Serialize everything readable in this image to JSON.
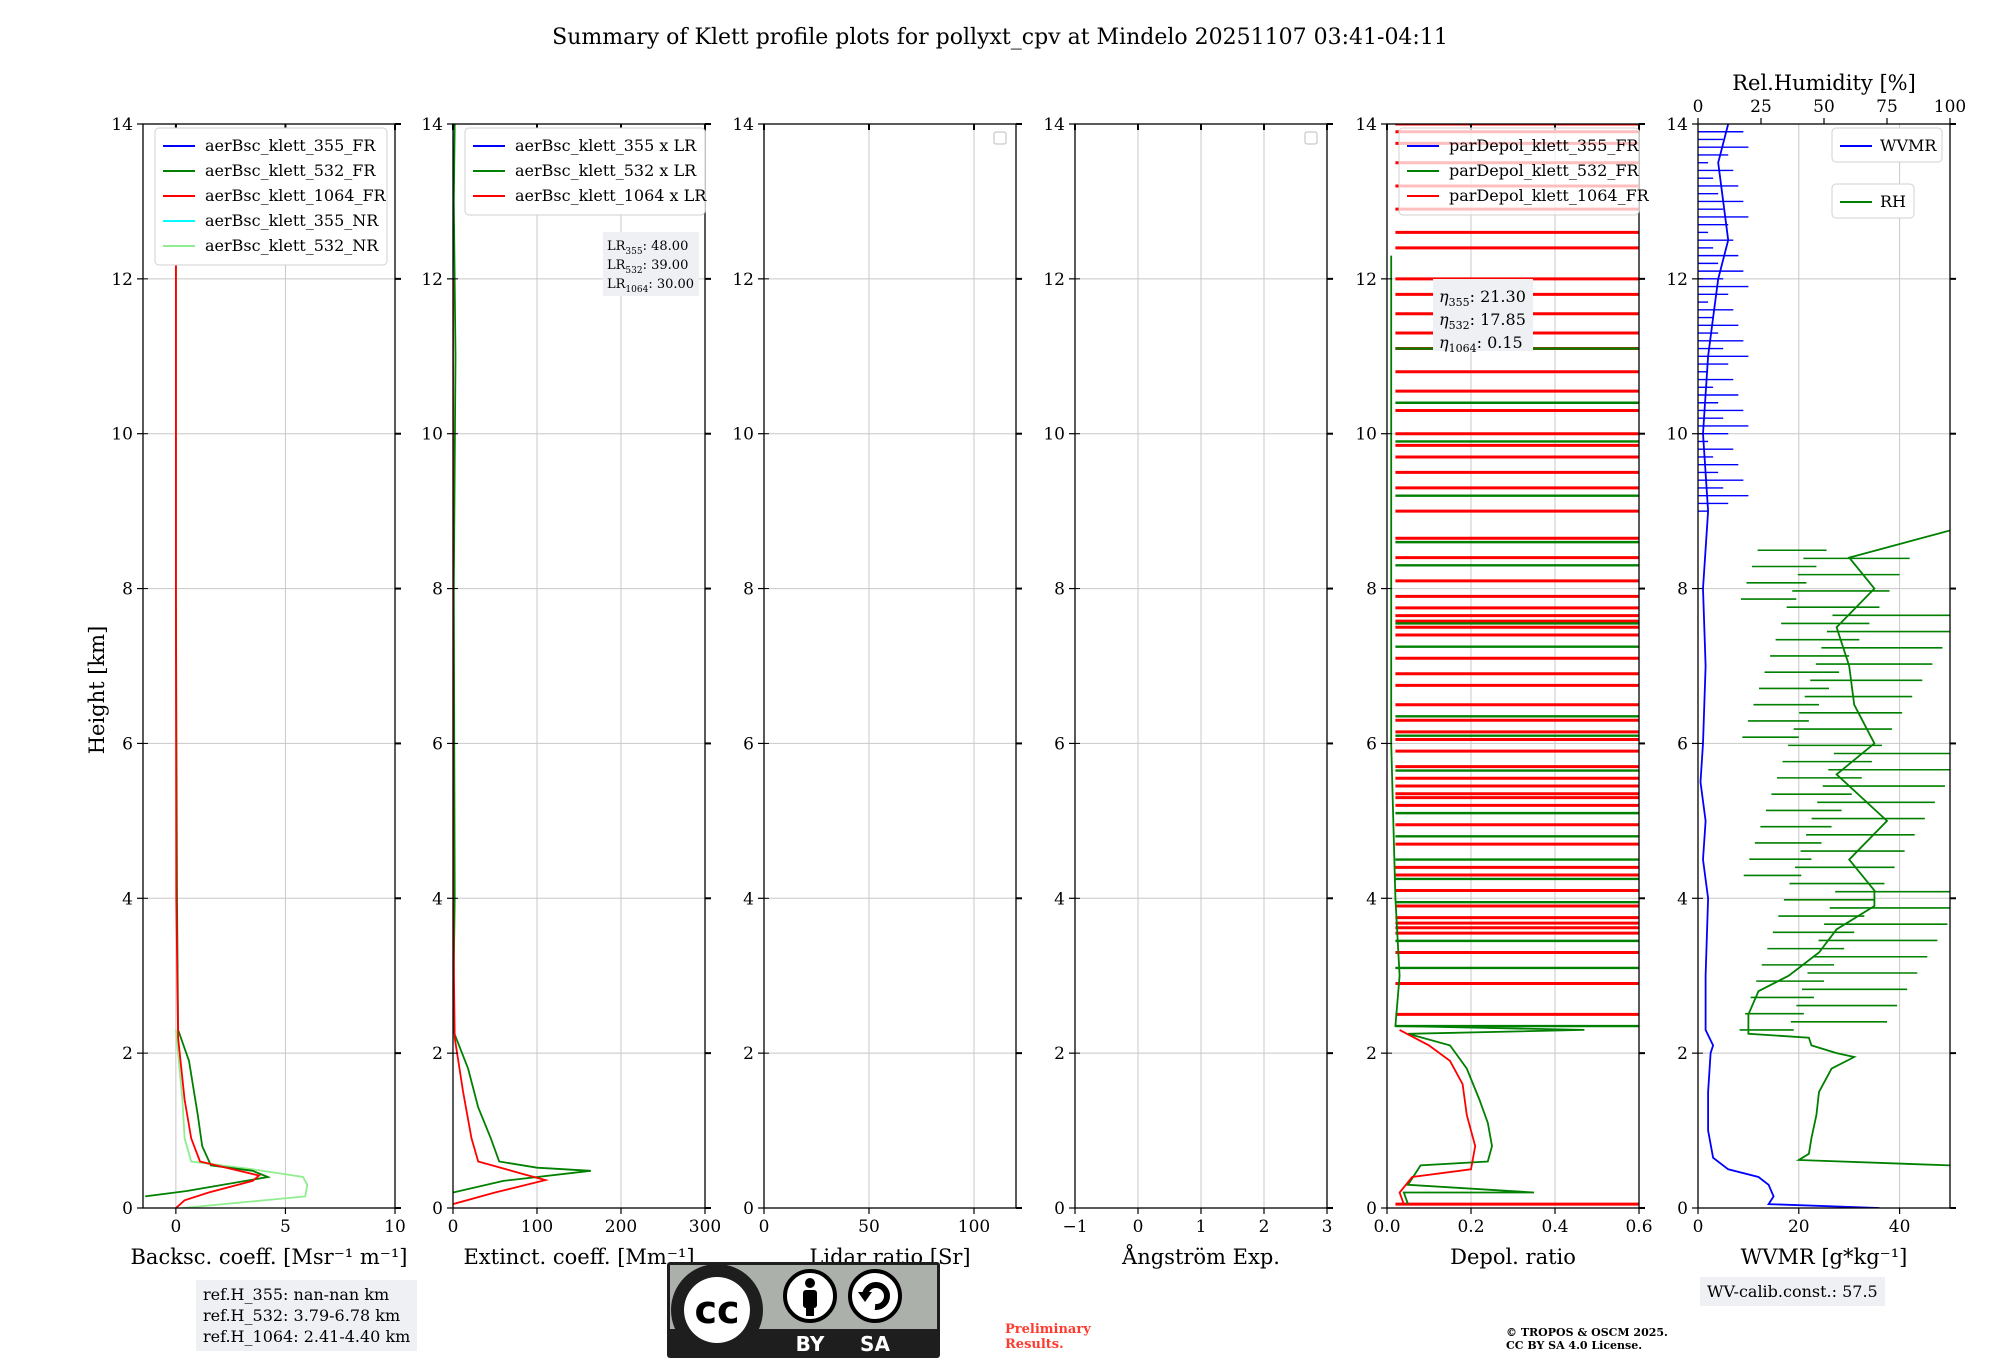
{
  "title": "Summary of Klett profile plots for pollyxt_cpv at Mindelo 20251107 03:41-04:11",
  "y_axis_label": "Height [km]",
  "colors": {
    "blue": "#0000ff",
    "green": "#008000",
    "red": "#ff0000",
    "cyan": "#00ffff",
    "lightgreen": "#90ee90",
    "grid": "#c8c8c8",
    "box_bg": "#eef0f4"
  },
  "chart_data": [
    {
      "type": "line",
      "name": "backscatter",
      "xlabel": "Backsc. coeff. [Msr⁻¹ m⁻¹]",
      "xlim": [
        -1.5,
        10
      ],
      "xticks": [
        0,
        5,
        10
      ],
      "xtick_labels": [
        "0",
        "5",
        "10"
      ],
      "ylim": [
        0,
        14
      ],
      "yticks": [
        0,
        2,
        4,
        6,
        8,
        10,
        12,
        14
      ],
      "ytick_labels": [
        "0",
        "2",
        "4",
        "6",
        "8",
        "10",
        "12",
        "14"
      ],
      "grid": true,
      "legend_position": "top-left",
      "legend": [
        "aerBsc_klett_355_FR",
        "aerBsc_klett_532_FR",
        "aerBsc_klett_1064_FR",
        "aerBsc_klett_355_NR",
        "aerBsc_klett_532_NR"
      ],
      "series": [
        {
          "name": "aerBsc_klett_532_NR",
          "color": "#90ee90",
          "points": [
            [
              0.3,
              0
            ],
            [
              5.9,
              0.15
            ],
            [
              6.0,
              0.3
            ],
            [
              5.8,
              0.4
            ],
            [
              3.5,
              0.5
            ],
            [
              0.7,
              0.6
            ],
            [
              0.4,
              0.9
            ],
            [
              0.3,
              1.4
            ],
            [
              0.1,
              2.0
            ],
            [
              0.0,
              2.3
            ]
          ]
        },
        {
          "name": "aerBsc_klett_532_FR",
          "color": "#008000",
          "points": [
            [
              -1.4,
              0.15
            ],
            [
              0.5,
              0.22
            ],
            [
              4.2,
              0.4
            ],
            [
              3.5,
              0.48
            ],
            [
              1.6,
              0.55
            ],
            [
              1.2,
              0.8
            ],
            [
              1.0,
              1.2
            ],
            [
              0.6,
              1.9
            ],
            [
              0.1,
              2.3
            ],
            [
              0.05,
              4
            ],
            [
              0.0,
              8
            ],
            [
              0.0,
              12
            ],
            [
              0.0,
              14
            ]
          ]
        },
        {
          "name": "aerBsc_klett_1064_FR",
          "color": "#ff0000",
          "points": [
            [
              0.0,
              0.0
            ],
            [
              0.4,
              0.1
            ],
            [
              1.5,
              0.2
            ],
            [
              3.5,
              0.35
            ],
            [
              3.8,
              0.42
            ],
            [
              1.1,
              0.6
            ],
            [
              0.7,
              0.9
            ],
            [
              0.4,
              1.4
            ],
            [
              0.1,
              2.2
            ],
            [
              0.02,
              4
            ],
            [
              0.0,
              8
            ],
            [
              0.0,
              12
            ],
            [
              0.0,
              14
            ]
          ]
        }
      ]
    },
    {
      "type": "line",
      "name": "extinction",
      "xlabel": "Extinct. coeff. [Mm⁻¹]",
      "xlim": [
        0,
        300
      ],
      "xticks": [
        0,
        100,
        200,
        300
      ],
      "xtick_labels": [
        "0",
        "100",
        "200",
        "300"
      ],
      "ylim": [
        0,
        14
      ],
      "yticks": [
        0,
        2,
        4,
        6,
        8,
        10,
        12,
        14
      ],
      "ytick_labels": [
        "0",
        "2",
        "4",
        "6",
        "8",
        "10",
        "12",
        "14"
      ],
      "grid": true,
      "legend_position": "top-left",
      "legend": [
        "aerBsc_klett_355 x LR",
        "aerBsc_klett_532 x LR",
        "aerBsc_klett_1064 x LR"
      ],
      "annotation": {
        "lines": [
          {
            "base": "LR",
            "sub": "355",
            "value": ": 48.00"
          },
          {
            "base": "LR",
            "sub": "532",
            "value": ": 39.00"
          },
          {
            "base": "LR",
            "sub": "1064",
            "value": ": 30.00"
          }
        ]
      },
      "series": [
        {
          "name": "aerBsc_klett_532 x LR",
          "color": "#008000",
          "points": [
            [
              0,
              0.2
            ],
            [
              60,
              0.35
            ],
            [
              164,
              0.48
            ],
            [
              100,
              0.52
            ],
            [
              55,
              0.6
            ],
            [
              45,
              0.9
            ],
            [
              30,
              1.3
            ],
            [
              18,
              1.8
            ],
            [
              0,
              2.3
            ],
            [
              2,
              4
            ],
            [
              1,
              8
            ],
            [
              3,
              11
            ],
            [
              1,
              13
            ],
            [
              2,
              14
            ]
          ]
        },
        {
          "name": "aerBsc_klett_1064 x LR",
          "color": "#ff0000",
          "points": [
            [
              0,
              0.05
            ],
            [
              50,
              0.2
            ],
            [
              110,
              0.36
            ],
            [
              80,
              0.45
            ],
            [
              30,
              0.6
            ],
            [
              22,
              0.9
            ],
            [
              12,
              1.5
            ],
            [
              2,
              2.2
            ],
            [
              0,
              4
            ],
            [
              0,
              8
            ],
            [
              0,
              12
            ]
          ]
        }
      ]
    },
    {
      "type": "line",
      "name": "lidar-ratio",
      "xlabel": "Lidar ratio [Sr]",
      "xlim": [
        0,
        120
      ],
      "xticks": [
        0,
        50,
        100
      ],
      "xtick_labels": [
        "0",
        "50",
        "100"
      ],
      "ylim": [
        0,
        14
      ],
      "yticks": [
        0,
        2,
        4,
        6,
        8,
        10,
        12,
        14
      ],
      "ytick_labels": [
        "0",
        "2",
        "4",
        "6",
        "8",
        "10",
        "12",
        "14"
      ],
      "grid": true,
      "legend_position": "top-right",
      "legend": [],
      "series": []
    },
    {
      "type": "line",
      "name": "angstrom",
      "xlabel": "Ångström Exp.",
      "xlim": [
        -1,
        3
      ],
      "xticks": [
        -1,
        0,
        1,
        2,
        3
      ],
      "xtick_labels": [
        "−1",
        "0",
        "1",
        "2",
        "3"
      ],
      "ylim": [
        0,
        14
      ],
      "yticks": [
        0,
        2,
        4,
        6,
        8,
        10,
        12,
        14
      ],
      "ytick_labels": [
        "0",
        "2",
        "4",
        "6",
        "8",
        "10",
        "12",
        "14"
      ],
      "grid": true,
      "legend_position": "top-right",
      "legend": [],
      "series": []
    },
    {
      "type": "line",
      "name": "depolarization",
      "xlabel": "Depol. ratio",
      "xlim": [
        0,
        0.6
      ],
      "xticks": [
        0,
        0.2,
        0.4,
        0.6
      ],
      "xtick_labels": [
        "0.0",
        "0.2",
        "0.4",
        "0.6"
      ],
      "ylim": [
        0,
        14
      ],
      "yticks": [
        0,
        2,
        4,
        6,
        8,
        10,
        12,
        14
      ],
      "ytick_labels": [
        "0",
        "2",
        "4",
        "6",
        "8",
        "10",
        "12",
        "14"
      ],
      "grid": true,
      "legend_position": "top-left",
      "legend": [
        "parDepol_klett_355_FR",
        "parDepol_klett_532_FR",
        "parDepol_klett_1064_FR"
      ],
      "annotation": {
        "lines": [
          {
            "base": "η",
            "sub": "355",
            "value": ": 21.30"
          },
          {
            "base": "η",
            "sub": "532",
            "value": ": 17.85"
          },
          {
            "base": "η",
            "sub": "1064",
            "value": ": 0.15"
          }
        ]
      },
      "series": [
        {
          "name": "parDepol_klett_532_FR",
          "color": "#008000",
          "points": [
            [
              0.05,
              0.05
            ],
            [
              0.04,
              0.2
            ],
            [
              0.35,
              0.2
            ],
            [
              0.05,
              0.3
            ],
            [
              0.08,
              0.55
            ],
            [
              0.24,
              0.6
            ],
            [
              0.25,
              0.8
            ],
            [
              0.24,
              1.1
            ],
            [
              0.22,
              1.4
            ],
            [
              0.19,
              1.8
            ],
            [
              0.15,
              2.1
            ],
            [
              0.05,
              2.25
            ],
            [
              0.47,
              2.3
            ],
            [
              0.02,
              2.35
            ],
            [
              0.03,
              3
            ],
            [
              0.02,
              4
            ],
            [
              0.01,
              6
            ],
            [
              0.01,
              10
            ],
            [
              0.01,
              12.3
            ]
          ]
        },
        {
          "name": "parDepol_klett_1064_FR",
          "color": "#ff0000",
          "points": [
            [
              0.04,
              0.05
            ],
            [
              0.03,
              0.2
            ],
            [
              0.06,
              0.4
            ],
            [
              0.2,
              0.5
            ],
            [
              0.21,
              0.8
            ],
            [
              0.19,
              1.2
            ],
            [
              0.18,
              1.6
            ],
            [
              0.15,
              1.9
            ],
            [
              0.1,
              2.1
            ],
            [
              0.03,
              2.3
            ]
          ]
        }
      ],
      "spikes_1064_km": [
        0.05,
        2.5,
        2.9,
        3.3,
        3.55,
        3.62,
        3.68,
        3.75,
        3.9,
        4.1,
        4.3,
        4.4,
        4.7,
        4.95,
        5.2,
        5.3,
        5.35,
        5.45,
        5.55,
        5.7,
        5.9,
        6.05,
        6.15,
        6.3,
        6.5,
        6.75,
        6.9,
        7.1,
        7.4,
        7.5,
        7.58,
        7.65,
        7.75,
        7.9,
        8.1,
        8.4,
        8.65,
        9.0,
        9.3,
        9.5,
        9.7,
        9.85,
        10.0,
        10.3,
        10.55,
        10.8,
        11.1,
        11.3,
        11.55,
        11.8,
        12.0,
        12.4,
        12.6,
        12.9,
        13.2,
        13.5,
        13.75,
        13.9,
        14.0
      ],
      "spikes_532_km": [
        2.35,
        3.1,
        3.45,
        3.95,
        4.25,
        4.5,
        4.8,
        5.1,
        5.65,
        6.1,
        6.35,
        7.25,
        7.55,
        8.3,
        8.6,
        9.2,
        9.9,
        10.4,
        11.1
      ]
    },
    {
      "type": "line",
      "name": "wvmr-rh",
      "xlabel": "WVMR [g*kg⁻¹]",
      "xlim": [
        0,
        50
      ],
      "xticks": [
        0,
        20,
        40
      ],
      "xtick_labels": [
        "0",
        "20",
        "40"
      ],
      "x2label": "Rel.Humidity [%]",
      "x2lim": [
        0,
        100
      ],
      "x2ticks": [
        0,
        25,
        50,
        75,
        100
      ],
      "x2tick_labels": [
        "0",
        "25",
        "50",
        "75",
        "100"
      ],
      "ylim": [
        0,
        14
      ],
      "yticks": [
        0,
        2,
        4,
        6,
        8,
        10,
        12,
        14
      ],
      "ytick_labels": [
        "0",
        "2",
        "4",
        "6",
        "8",
        "10",
        "12",
        "14"
      ],
      "grid": true,
      "legend_position": "top-right",
      "legend": [
        "WVMR",
        "RH"
      ],
      "wvmr": [
        [
          36,
          0.0
        ],
        [
          14,
          0.05
        ],
        [
          15,
          0.15
        ],
        [
          14,
          0.3
        ],
        [
          12,
          0.4
        ],
        [
          6,
          0.5
        ],
        [
          3,
          0.65
        ],
        [
          2,
          1.0
        ],
        [
          2,
          1.5
        ],
        [
          2.5,
          2.0
        ],
        [
          3,
          2.1
        ],
        [
          1.5,
          2.3
        ],
        [
          1.5,
          3
        ],
        [
          2,
          4
        ],
        [
          1,
          4.5
        ],
        [
          1.5,
          5
        ],
        [
          0.5,
          5.5
        ],
        [
          1,
          6
        ],
        [
          1.5,
          7
        ],
        [
          1,
          8
        ],
        [
          2,
          9
        ],
        [
          1,
          10
        ],
        [
          2,
          11
        ],
        [
          3,
          11.5
        ],
        [
          4,
          12
        ],
        [
          6,
          12.5
        ],
        [
          5,
          13
        ],
        [
          4,
          13.5
        ],
        [
          6,
          14
        ]
      ],
      "rh": [
        [
          100,
          0.55
        ],
        [
          40,
          0.62
        ],
        [
          44,
          0.7
        ],
        [
          45,
          0.9
        ],
        [
          47,
          1.2
        ],
        [
          48,
          1.5
        ],
        [
          53,
          1.8
        ],
        [
          62,
          1.95
        ],
        [
          55,
          2.0
        ],
        [
          45,
          2.1
        ],
        [
          44,
          2.2
        ],
        [
          20,
          2.25
        ],
        [
          20,
          2.5
        ],
        [
          24,
          2.8
        ],
        [
          36,
          3.0
        ],
        [
          48,
          3.3
        ],
        [
          55,
          3.6
        ],
        [
          70,
          3.9
        ],
        [
          70,
          4.1
        ],
        [
          60,
          4.5
        ],
        [
          75,
          5.0
        ],
        [
          55,
          5.6
        ],
        [
          70,
          6.0
        ],
        [
          62,
          6.5
        ],
        [
          60,
          7.0
        ],
        [
          55,
          7.5
        ],
        [
          70,
          8.0
        ],
        [
          60,
          8.4
        ],
        [
          100,
          8.75
        ]
      ]
    }
  ],
  "ref_heights": [
    "ref.H_355: nan-nan km",
    "ref.H_532: 3.79-6.78 km",
    "ref.H_1064: 2.41-4.40 km"
  ],
  "wv_calib": "WV-calib.const.: 57.5",
  "license_badge": {
    "cc": "cc",
    "by": "BY",
    "sa": "SA"
  },
  "preliminary": [
    "Preliminary",
    "Results."
  ],
  "copyright": [
    "© TROPOS & OSCM 2025.",
    "CC BY SA 4.0 License."
  ]
}
